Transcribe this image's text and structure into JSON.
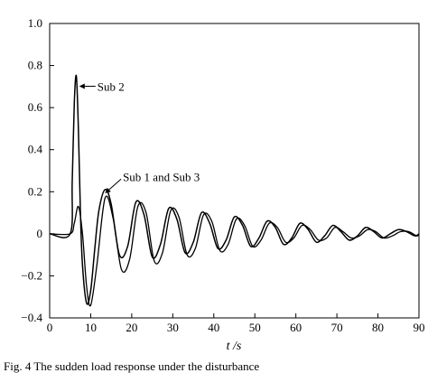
{
  "chart_data": {
    "type": "line",
    "title": "",
    "xlabel": "t /s",
    "ylabel": "",
    "xlim": [
      0,
      90
    ],
    "ylim": [
      -0.4,
      1.0
    ],
    "x_ticks": [
      0,
      10,
      20,
      30,
      40,
      50,
      60,
      70,
      80,
      90
    ],
    "y_ticks": [
      -0.4,
      -0.2,
      0,
      0.2,
      0.4,
      0.6,
      0.8,
      1.0
    ],
    "x_tick_labels": [
      "0",
      "10",
      "20",
      "30",
      "40",
      "50",
      "60",
      "70",
      "80",
      "90"
    ],
    "y_tick_labels": [
      "−0.4",
      "−0.2",
      "0",
      "0.2",
      "0.4",
      "0.6",
      "0.8",
      "1.0"
    ],
    "grid": false,
    "series": [
      {
        "name": "Sub 2",
        "x": [
          0,
          5,
          5.5,
          6,
          6.5,
          7,
          7.5,
          8,
          9,
          10,
          11,
          12,
          13.5,
          15,
          17,
          19,
          21,
          23,
          25,
          27,
          29,
          31,
          33,
          35,
          37,
          39,
          41,
          43,
          45,
          47,
          49,
          51,
          53,
          55,
          57,
          59,
          61,
          63,
          65,
          67,
          69,
          71,
          73,
          75,
          77,
          79,
          81,
          83,
          85,
          87,
          89,
          90
        ],
        "y": [
          0,
          0,
          0.25,
          0.62,
          0.75,
          0.5,
          0.1,
          -0.15,
          -0.33,
          -0.27,
          -0.07,
          0.11,
          0.21,
          0.14,
          -0.1,
          -0.06,
          0.15,
          0.09,
          -0.11,
          -0.05,
          0.12,
          0.07,
          -0.09,
          -0.04,
          0.1,
          0.05,
          -0.07,
          -0.03,
          0.08,
          0.04,
          -0.06,
          -0.02,
          0.06,
          0.03,
          -0.05,
          -0.02,
          0.05,
          0.02,
          -0.04,
          -0.01,
          0.04,
          0.01,
          -0.03,
          -0.01,
          0.03,
          0.01,
          -0.02,
          0,
          0.02,
          0.01,
          -0.01,
          0
        ]
      },
      {
        "name": "Sub 1 and Sub 3",
        "x": [
          0,
          5,
          6,
          7,
          8,
          9,
          10,
          11.5,
          13.5,
          15.5,
          17.5,
          19.5,
          21.5,
          23.5,
          25.5,
          27.5,
          29.5,
          31.5,
          33.5,
          35.5,
          37.5,
          39.5,
          41.5,
          43.5,
          45.5,
          47.5,
          49.5,
          51.5,
          53.5,
          55.5,
          57.5,
          59.5,
          61.5,
          63.5,
          65.5,
          67.5,
          69.5,
          71.5,
          73.5,
          75.5,
          77.5,
          79.5,
          81.5,
          83.5,
          85.5,
          87.5,
          89.5,
          90
        ],
        "y": [
          0,
          0,
          0.05,
          0.13,
          0.0,
          -0.25,
          -0.34,
          -0.15,
          0.17,
          0.07,
          -0.17,
          -0.12,
          0.13,
          0.1,
          -0.13,
          -0.09,
          0.11,
          0.08,
          -0.1,
          -0.07,
          0.09,
          0.06,
          -0.08,
          -0.05,
          0.07,
          0.04,
          -0.06,
          -0.03,
          0.05,
          0.03,
          -0.04,
          -0.02,
          0.04,
          0.02,
          -0.03,
          -0.02,
          0.03,
          0.01,
          -0.02,
          -0.01,
          0.02,
          0.01,
          -0.02,
          -0.01,
          0.01,
          0.01,
          -0.01,
          0
        ]
      }
    ],
    "annotations": [
      {
        "text": "Sub 2",
        "target_series": "Sub 2",
        "at": {
          "x": 7,
          "y": 0.68
        }
      },
      {
        "text": "Sub 1 and Sub 3",
        "target_series": "Sub 1 and Sub 3",
        "at": {
          "x": 13,
          "y": 0.2
        }
      }
    ]
  },
  "caption": "Fig. 4   The sudden load response under the disturbance"
}
